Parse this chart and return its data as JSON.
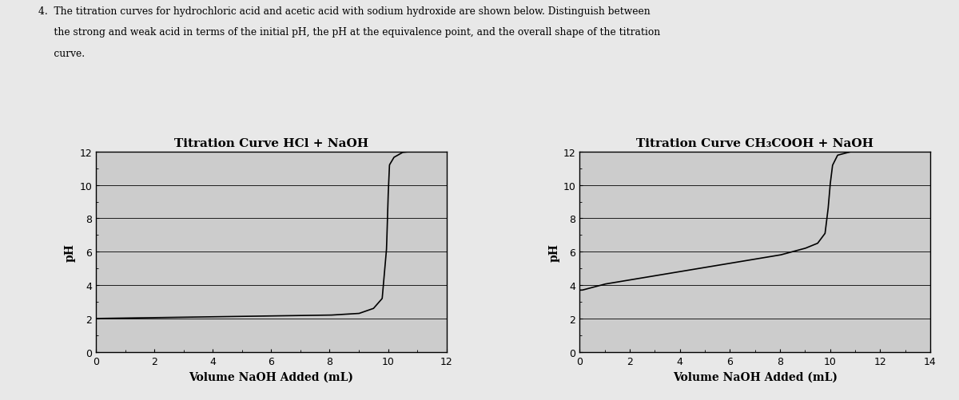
{
  "hcl_title": "Titration Curve HCl + NaOH",
  "acetic_title": "Titration Curve CH₃COOH + NaOH",
  "xlabel": "Volume NaOH Added (mL)",
  "ylabel": "pH",
  "hcl_xlim": [
    0,
    12
  ],
  "hcl_ylim": [
    0,
    12
  ],
  "hcl_xticks": [
    0,
    2,
    4,
    6,
    8,
    10,
    12
  ],
  "hcl_yticks": [
    0,
    2,
    4,
    6,
    8,
    10,
    12
  ],
  "acetic_xlim": [
    0,
    14
  ],
  "acetic_ylim": [
    0,
    12
  ],
  "acetic_xticks": [
    0,
    2,
    4,
    6,
    8,
    10,
    12,
    14
  ],
  "acetic_yticks": [
    0,
    2,
    4,
    6,
    8,
    10,
    12
  ],
  "line_color": "#000000",
  "plot_bg_color": "#cccccc",
  "fig_bg_color": "#e8e8e8",
  "title_fontsize": 11,
  "label_fontsize": 10,
  "tick_fontsize": 9,
  "text_line1": "4.  The titration curves for hydrochloric acid and acetic acid with sodium hydroxide are shown below. Distinguish between",
  "text_line2": "     the strong and weak acid in terms of the initial pH, the pH at the equivalence point, and the overall shape of the titration",
  "text_line3": "     curve."
}
